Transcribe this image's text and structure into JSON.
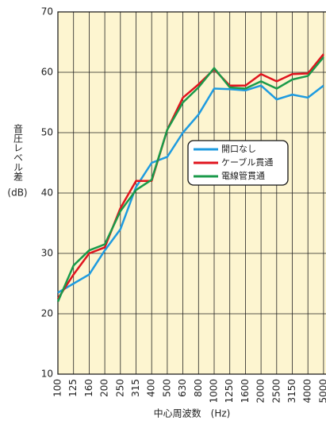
{
  "chart_data": {
    "type": "line",
    "ylabel": "音圧レベル差",
    "ylabel_unit": "(dB)",
    "xlabel": "中心周波数　(Hz)",
    "categories": [
      "100",
      "125",
      "160",
      "200",
      "250",
      "315",
      "400",
      "500",
      "630",
      "800",
      "1000",
      "1250",
      "1600",
      "2000",
      "2500",
      "3150",
      "4000",
      "5000"
    ],
    "series": [
      {
        "name": "開口なし",
        "color": "#1e9be0",
        "values": [
          23.5,
          25,
          26.5,
          30.5,
          34,
          41,
          45,
          46,
          50,
          53,
          57.3,
          57.2,
          57,
          57.8,
          55.5,
          56.3,
          55.8,
          57.8
        ]
      },
      {
        "name": "ケーブル貫通",
        "color": "#e0141e",
        "values": [
          22.5,
          26.5,
          30,
          31,
          37.5,
          42,
          42,
          50.5,
          55.8,
          58,
          60.5,
          57.8,
          57.8,
          59.7,
          58.5,
          59.7,
          59.8,
          63
        ]
      },
      {
        "name": "電線管貫通",
        "color": "#1a9a4a",
        "values": [
          22,
          28,
          30.5,
          31.5,
          37,
          40.5,
          42.2,
          50.5,
          55,
          57.5,
          60.7,
          57.5,
          57.3,
          58.5,
          57.3,
          58.8,
          59.4,
          62.5
        ]
      }
    ],
    "ylim": [
      10,
      70
    ],
    "yticks": [
      10,
      20,
      30,
      40,
      50,
      60,
      70
    ],
    "grid": true,
    "legend": "center-right"
  }
}
